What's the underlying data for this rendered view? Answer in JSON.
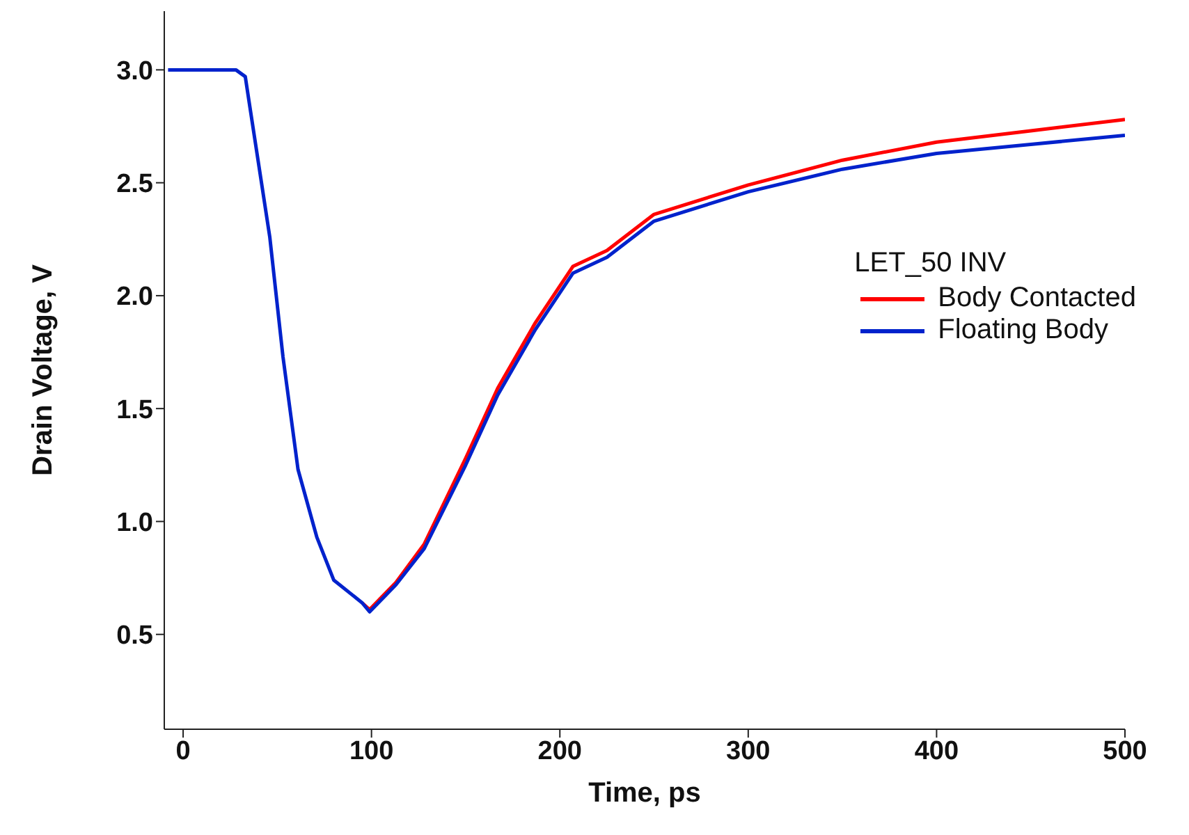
{
  "chart_data": {
    "type": "line",
    "xlabel": "Time, ps",
    "ylabel": "Drain Voltage, V",
    "legend_title": "LET_50 INV",
    "legend": "right",
    "grid": false,
    "marker": "none",
    "line_style": "solid",
    "xlim": [
      -10,
      500
    ],
    "xticks": [
      0,
      100,
      200,
      300,
      400,
      500
    ],
    "ylim": [
      0.08,
      3.26
    ],
    "yticks": [
      0.5,
      {
        "value": 1,
        "label": "1.0"
      },
      1.5,
      {
        "value": 2,
        "label": "2.0"
      },
      2.5,
      {
        "value": 3,
        "label": "3.0"
      }
    ],
    "series": [
      {
        "name": "Body Contacted",
        "color": "#ff0000",
        "x": [
          95,
          99,
          113,
          128,
          150,
          167,
          187,
          207,
          225,
          250,
          300,
          350,
          400,
          450,
          500
        ],
        "values": [
          0.64,
          0.61,
          0.73,
          0.9,
          1.28,
          1.59,
          1.88,
          2.13,
          2.2,
          2.36,
          2.49,
          2.6,
          2.68,
          2.73,
          2.78
        ]
      },
      {
        "name": "Floating Body",
        "color": "#0022cc",
        "x": [
          -8,
          28,
          33,
          35,
          46,
          53,
          61,
          71,
          80,
          95,
          99,
          113,
          128,
          150,
          167,
          187,
          207,
          225,
          250,
          300,
          350,
          400,
          450,
          500
        ],
        "values": [
          3.0,
          3.0,
          2.97,
          2.86,
          2.26,
          1.73,
          1.23,
          0.93,
          0.74,
          0.64,
          0.6,
          0.72,
          0.88,
          1.25,
          1.56,
          1.85,
          2.1,
          2.17,
          2.33,
          2.46,
          2.56,
          2.63,
          2.67,
          2.71
        ]
      }
    ]
  }
}
